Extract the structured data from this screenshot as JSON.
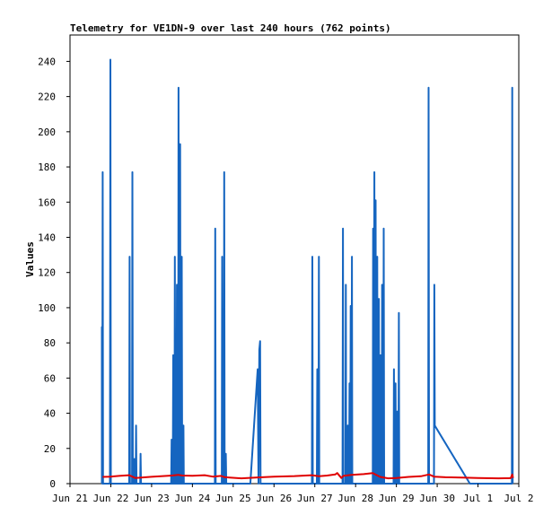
{
  "chart_data": {
    "type": "line",
    "title": "Telemetry for VE1DN-9 over last 240 hours (762 points)",
    "xlabel": "",
    "ylabel": "Values",
    "x_unit": "days since Jun 21",
    "xlim": [
      0,
      11
    ],
    "ylim": [
      0,
      255
    ],
    "x_ticks": [
      {
        "x": 0,
        "label": "Jun 21"
      },
      {
        "x": 1,
        "label": "Jun 22"
      },
      {
        "x": 2,
        "label": "Jun 23"
      },
      {
        "x": 3,
        "label": "Jun 24"
      },
      {
        "x": 4,
        "label": "Jun 25"
      },
      {
        "x": 5,
        "label": "Jun 26"
      },
      {
        "x": 6,
        "label": "Jun 27"
      },
      {
        "x": 7,
        "label": "Jun 28"
      },
      {
        "x": 8,
        "label": "Jun 29"
      },
      {
        "x": 9,
        "label": "Jun 30"
      },
      {
        "x": 10,
        "label": "Jul 1"
      },
      {
        "x": 11,
        "label": "Jul 2"
      }
    ],
    "y_ticks": [
      0,
      20,
      40,
      60,
      80,
      100,
      120,
      140,
      160,
      180,
      200,
      220,
      240
    ],
    "grid": false,
    "legend": "none",
    "series": [
      {
        "name": "",
        "color": "#1565c0",
        "points": [
          [
            0.78,
            0
          ],
          [
            0.78,
            89
          ],
          [
            0.79,
            0
          ],
          [
            0.8,
            177
          ],
          [
            0.81,
            0
          ],
          [
            0.98,
            0
          ],
          [
            0.99,
            241
          ],
          [
            1.0,
            0
          ],
          [
            1.45,
            0
          ],
          [
            1.46,
            129
          ],
          [
            1.47,
            0
          ],
          [
            1.52,
            0
          ],
          [
            1.53,
            177
          ],
          [
            1.54,
            0
          ],
          [
            1.57,
            0
          ],
          [
            1.58,
            14
          ],
          [
            1.59,
            0
          ],
          [
            1.61,
            0
          ],
          [
            1.62,
            33
          ],
          [
            1.63,
            0
          ],
          [
            1.72,
            0
          ],
          [
            1.73,
            17
          ],
          [
            1.74,
            0
          ],
          [
            2.48,
            0
          ],
          [
            2.49,
            25
          ],
          [
            2.5,
            0
          ],
          [
            2.52,
            0
          ],
          [
            2.53,
            73
          ],
          [
            2.54,
            0
          ],
          [
            2.56,
            0
          ],
          [
            2.57,
            129
          ],
          [
            2.58,
            0
          ],
          [
            2.61,
            0
          ],
          [
            2.62,
            113
          ],
          [
            2.63,
            0
          ],
          [
            2.65,
            0
          ],
          [
            2.66,
            225
          ],
          [
            2.67,
            0
          ],
          [
            2.69,
            0
          ],
          [
            2.7,
            193
          ],
          [
            2.71,
            0
          ],
          [
            2.73,
            0
          ],
          [
            2.74,
            129
          ],
          [
            2.75,
            0
          ],
          [
            2.77,
            0
          ],
          [
            2.78,
            33
          ],
          [
            2.79,
            0
          ],
          [
            3.55,
            0
          ],
          [
            3.56,
            145
          ],
          [
            3.57,
            0
          ],
          [
            3.72,
            0
          ],
          [
            3.73,
            129
          ],
          [
            3.74,
            0
          ],
          [
            3.77,
            0
          ],
          [
            3.78,
            177
          ],
          [
            3.79,
            0
          ],
          [
            3.81,
            0
          ],
          [
            3.82,
            17
          ],
          [
            3.83,
            0
          ],
          [
            4.42,
            0
          ],
          [
            4.6,
            65
          ],
          [
            4.62,
            0
          ],
          [
            4.64,
            76
          ],
          [
            4.66,
            81
          ],
          [
            4.67,
            0
          ],
          [
            5.93,
            0
          ],
          [
            5.94,
            129
          ],
          [
            5.95,
            0
          ],
          [
            6.05,
            0
          ],
          [
            6.06,
            65
          ],
          [
            6.07,
            0
          ],
          [
            6.09,
            0
          ],
          [
            6.1,
            129
          ],
          [
            6.11,
            0
          ],
          [
            6.68,
            0
          ],
          [
            6.69,
            145
          ],
          [
            6.7,
            0
          ],
          [
            6.75,
            0
          ],
          [
            6.76,
            113
          ],
          [
            6.77,
            0
          ],
          [
            6.8,
            0
          ],
          [
            6.81,
            33
          ],
          [
            6.82,
            0
          ],
          [
            6.84,
            0
          ],
          [
            6.85,
            57
          ],
          [
            6.86,
            0
          ],
          [
            6.87,
            0
          ],
          [
            6.88,
            101
          ],
          [
            6.89,
            0
          ],
          [
            6.9,
            0
          ],
          [
            6.91,
            129
          ],
          [
            6.92,
            0
          ],
          [
            7.42,
            0
          ],
          [
            7.43,
            145
          ],
          [
            7.44,
            0
          ],
          [
            7.45,
            0
          ],
          [
            7.46,
            177
          ],
          [
            7.47,
            0
          ],
          [
            7.48,
            0
          ],
          [
            7.49,
            161
          ],
          [
            7.5,
            0
          ],
          [
            7.52,
            0
          ],
          [
            7.53,
            129
          ],
          [
            7.54,
            0
          ],
          [
            7.56,
            0
          ],
          [
            7.57,
            105
          ],
          [
            7.58,
            0
          ],
          [
            7.6,
            0
          ],
          [
            7.61,
            73
          ],
          [
            7.62,
            0
          ],
          [
            7.64,
            0
          ],
          [
            7.65,
            113
          ],
          [
            7.66,
            0
          ],
          [
            7.68,
            0
          ],
          [
            7.69,
            145
          ],
          [
            7.7,
            0
          ],
          [
            7.93,
            0
          ],
          [
            7.94,
            65
          ],
          [
            7.95,
            0
          ],
          [
            7.97,
            0
          ],
          [
            7.98,
            57
          ],
          [
            7.99,
            0
          ],
          [
            8.01,
            0
          ],
          [
            8.02,
            41
          ],
          [
            8.03,
            0
          ],
          [
            8.05,
            0
          ],
          [
            8.06,
            97
          ],
          [
            8.07,
            0
          ],
          [
            8.78,
            0
          ],
          [
            8.79,
            225
          ],
          [
            8.8,
            0
          ],
          [
            8.92,
            0
          ],
          [
            8.93,
            113
          ],
          [
            8.94,
            33
          ],
          [
            9.8,
            0
          ],
          [
            10.83,
            0
          ],
          [
            10.84,
            225
          ],
          [
            10.85,
            0
          ]
        ]
      },
      {
        "name": "",
        "color": "#e00000",
        "points": [
          [
            0.8,
            3.8
          ],
          [
            1.0,
            4.0
          ],
          [
            1.2,
            4.4
          ],
          [
            1.45,
            4.8
          ],
          [
            1.6,
            3.2
          ],
          [
            2.0,
            3.9
          ],
          [
            2.5,
            4.6
          ],
          [
            2.65,
            5.0
          ],
          [
            2.75,
            4.6
          ],
          [
            3.0,
            4.5
          ],
          [
            3.3,
            4.8
          ],
          [
            3.5,
            4.0
          ],
          [
            3.7,
            4.4
          ],
          [
            3.8,
            3.6
          ],
          [
            4.2,
            3.0
          ],
          [
            4.6,
            3.5
          ],
          [
            5.0,
            4.0
          ],
          [
            5.5,
            4.3
          ],
          [
            5.93,
            4.8
          ],
          [
            6.1,
            4.2
          ],
          [
            6.3,
            4.6
          ],
          [
            6.5,
            5.2
          ],
          [
            6.55,
            6.0
          ],
          [
            6.65,
            3.2
          ],
          [
            6.7,
            4.4
          ],
          [
            6.9,
            5.0
          ],
          [
            7.2,
            5.4
          ],
          [
            7.42,
            6.0
          ],
          [
            7.6,
            3.8
          ],
          [
            7.8,
            3.0
          ],
          [
            8.0,
            3.2
          ],
          [
            8.3,
            3.8
          ],
          [
            8.6,
            4.2
          ],
          [
            8.8,
            5.2
          ],
          [
            8.92,
            4.0
          ],
          [
            9.2,
            3.6
          ],
          [
            9.6,
            3.4
          ],
          [
            10.0,
            3.2
          ],
          [
            10.5,
            3.0
          ],
          [
            10.8,
            3.1
          ],
          [
            10.84,
            5.2
          ],
          [
            10.86,
            3.2
          ]
        ]
      }
    ]
  }
}
